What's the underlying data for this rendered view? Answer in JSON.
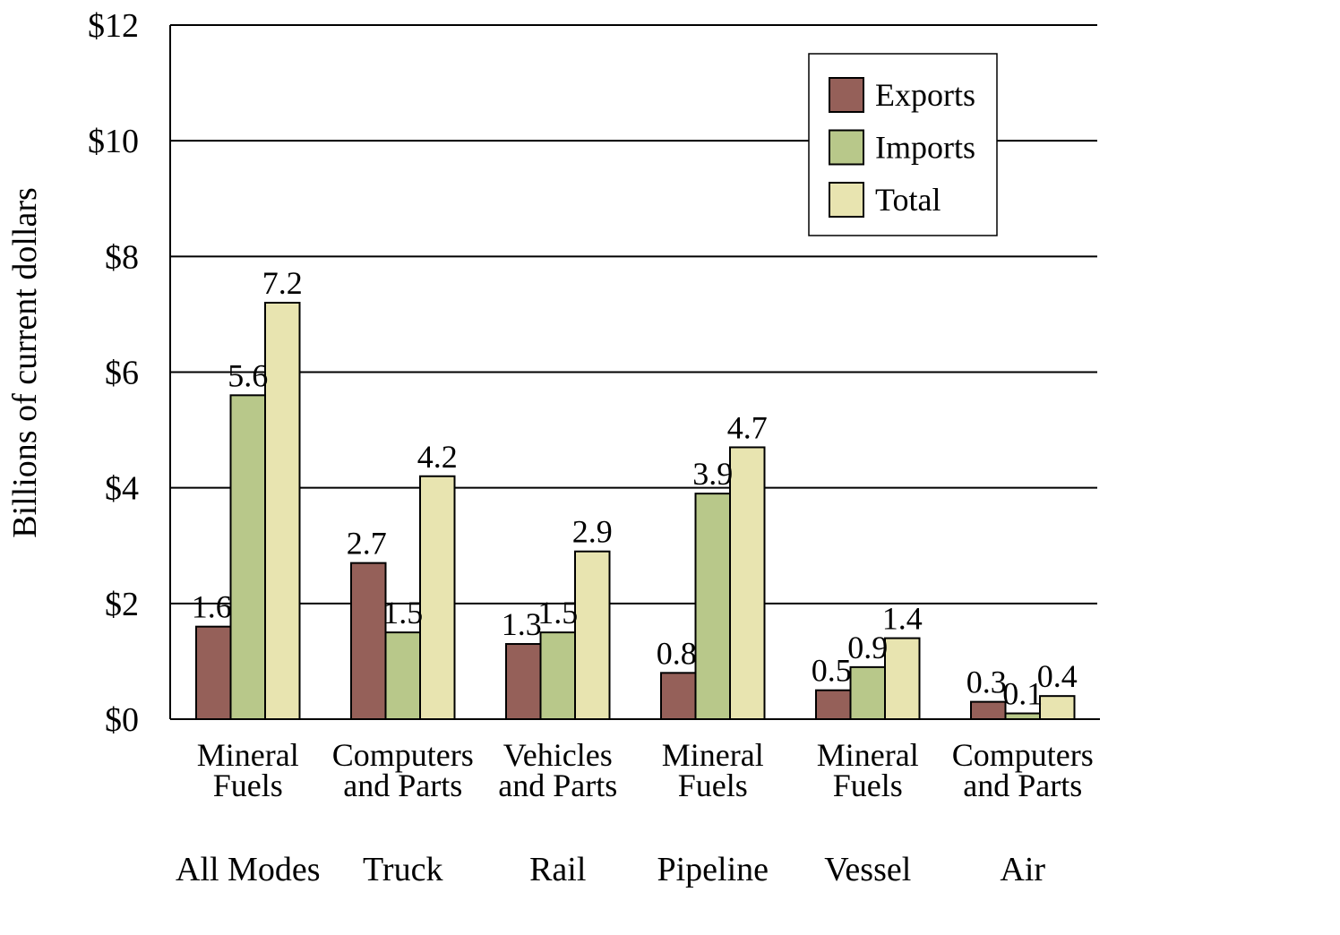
{
  "chart_data": {
    "type": "bar",
    "ylabel": "Billions of current dollars",
    "ylim": [
      0,
      12
    ],
    "yticks": [
      0,
      2,
      4,
      6,
      8,
      10,
      12
    ],
    "ytick_labels": [
      "$0",
      "$2",
      "$4",
      "$6",
      "$8",
      "$10",
      "$12"
    ],
    "grid": true,
    "legend_position": "top-right",
    "categories": [
      {
        "lines": [
          "Mineral",
          "Fuels"
        ],
        "group": "All Modes"
      },
      {
        "lines": [
          "Computers",
          "and Parts"
        ],
        "group": "Truck"
      },
      {
        "lines": [
          "Vehicles",
          "and Parts"
        ],
        "group": "Rail"
      },
      {
        "lines": [
          "Mineral",
          "Fuels"
        ],
        "group": "Pipeline"
      },
      {
        "lines": [
          "Mineral",
          "Fuels"
        ],
        "group": "Vessel"
      },
      {
        "lines": [
          "Computers",
          "and Parts"
        ],
        "group": "Air"
      }
    ],
    "series": [
      {
        "name": "Exports",
        "color": "#956059",
        "values": [
          1.6,
          2.7,
          1.3,
          0.8,
          0.5,
          0.3
        ],
        "labels": [
          "1.6",
          "2.7",
          "1.3",
          "0.8",
          "0.5",
          "0.3"
        ]
      },
      {
        "name": "Imports",
        "color": "#b8c88a",
        "values": [
          5.6,
          1.5,
          1.5,
          3.9,
          0.9,
          0.1
        ],
        "labels": [
          "5.6",
          "1.5",
          "1.5",
          "3.9",
          "0.9",
          "0.1"
        ]
      },
      {
        "name": "Total",
        "color": "#e8e4b0",
        "values": [
          7.2,
          4.2,
          2.9,
          4.7,
          1.4,
          0.4
        ],
        "labels": [
          "7.2",
          "4.2",
          "2.9",
          "4.7",
          "1.4",
          "0.4"
        ]
      }
    ]
  }
}
